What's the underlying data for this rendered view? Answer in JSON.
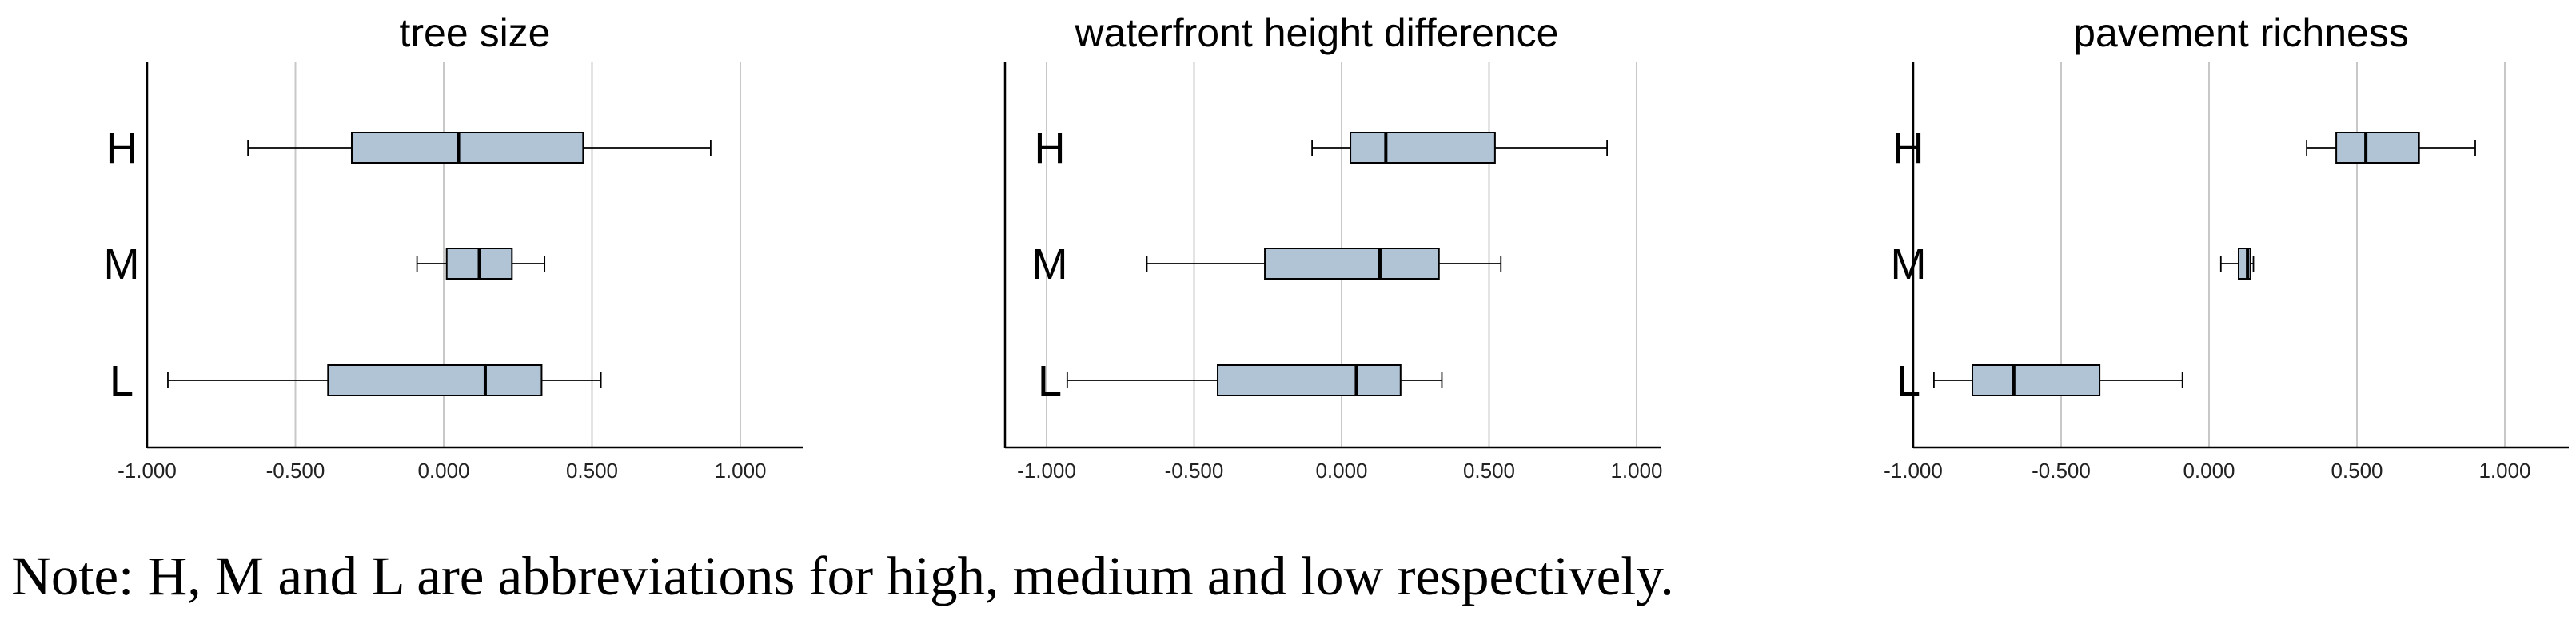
{
  "chart_data": [
    {
      "type": "boxplot",
      "orientation": "horizontal",
      "title": "tree size",
      "categories": [
        "H",
        "M",
        "L"
      ],
      "xlim": [
        -1.0,
        1.2
      ],
      "xticks": [
        -1.0,
        -0.5,
        0.0,
        0.5,
        1.0
      ],
      "xtick_labels": [
        "-1.000",
        "-0.500",
        "0.000",
        "0.500",
        "1.000"
      ],
      "grid": "vertical",
      "boxes": [
        {
          "category": "H",
          "min": -0.66,
          "q1": -0.31,
          "median": 0.05,
          "q3": 0.47,
          "max": 0.9
        },
        {
          "category": "M",
          "min": -0.09,
          "q1": 0.01,
          "median": 0.12,
          "q3": 0.23,
          "max": 0.34
        },
        {
          "category": "L",
          "min": -0.93,
          "q1": -0.39,
          "median": 0.14,
          "q3": 0.33,
          "max": 0.53
        }
      ]
    },
    {
      "type": "boxplot",
      "orientation": "horizontal",
      "title": "waterfront height difference",
      "categories": [
        "H",
        "M",
        "L"
      ],
      "xlim": [
        -1.0,
        1.2
      ],
      "xticks": [
        -1.0,
        -0.5,
        0.0,
        0.5,
        1.0
      ],
      "xtick_labels": [
        "-1.000",
        "-0.500",
        "0.000",
        "0.500",
        "1.000"
      ],
      "grid": "vertical",
      "boxes": [
        {
          "category": "H",
          "min": -0.1,
          "q1": 0.03,
          "median": 0.15,
          "q3": 0.52,
          "max": 0.9
        },
        {
          "category": "M",
          "min": -0.66,
          "q1": -0.26,
          "median": 0.13,
          "q3": 0.33,
          "max": 0.54
        },
        {
          "category": "L",
          "min": -0.93,
          "q1": -0.42,
          "median": 0.05,
          "q3": 0.2,
          "max": 0.34
        }
      ]
    },
    {
      "type": "boxplot",
      "orientation": "horizontal",
      "title": "pavement richness",
      "categories": [
        "H",
        "M",
        "L"
      ],
      "xlim": [
        -1.0,
        1.2
      ],
      "xticks": [
        -1.0,
        -0.5,
        0.0,
        0.5,
        1.0
      ],
      "xtick_labels": [
        "-1.000",
        "-0.500",
        "0.000",
        "0.500",
        "1.000"
      ],
      "grid": "vertical",
      "boxes": [
        {
          "category": "H",
          "min": 0.33,
          "q1": 0.43,
          "median": 0.53,
          "q3": 0.71,
          "max": 0.9
        },
        {
          "category": "M",
          "min": 0.04,
          "q1": 0.1,
          "median": 0.13,
          "q3": 0.14,
          "max": 0.15
        },
        {
          "category": "L",
          "min": -0.93,
          "q1": -0.8,
          "median": -0.66,
          "q3": -0.37,
          "max": -0.09
        }
      ]
    }
  ],
  "style": {
    "box_fill": "#b0c4d6",
    "box_stroke": "#000000",
    "grid_color": "#c8c8c8",
    "axis_color": "#000000"
  },
  "note": "Note: H, M and L are abbreviations for high, medium and low respectively."
}
